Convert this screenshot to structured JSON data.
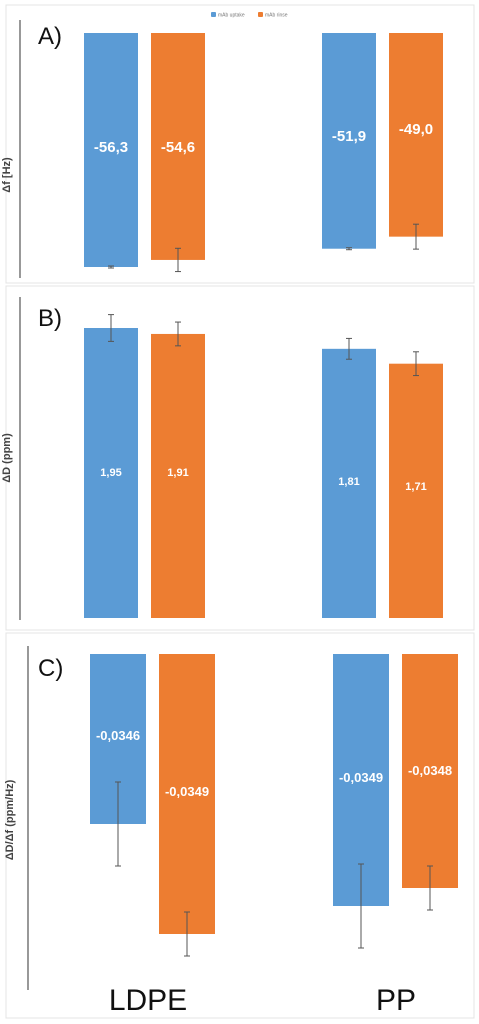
{
  "colors": {
    "series_1": "#5B9BD5",
    "series_2": "#ED7D31"
  },
  "legend": [
    "mAb uptake",
    "mAb rinse"
  ],
  "chart_data": [
    {
      "type": "bar",
      "panel_label": "A)",
      "ylabel": "Δf [Hz)",
      "categories": [
        "LDPE",
        "PP"
      ],
      "series": [
        {
          "name": "mAb uptake",
          "values": [
            -56.3,
            -51.9
          ],
          "labels": [
            "-56,3",
            "-51,9"
          ],
          "errors": [
            0.1,
            0.1
          ]
        },
        {
          "name": "mAb rinse",
          "values": [
            -54.6,
            -49.0
          ],
          "labels": [
            "-54,6",
            "-49,0"
          ],
          "errors": [
            2.8,
            3.0
          ]
        }
      ]
    },
    {
      "type": "bar",
      "panel_label": "B)",
      "ylabel": "ΔD (ppm)",
      "categories": [
        "LDPE",
        "PP"
      ],
      "series": [
        {
          "name": "mAb uptake",
          "values": [
            1.95,
            1.81
          ],
          "labels": [
            "1,95",
            "1,81"
          ],
          "errors": [
            0.09,
            0.07
          ]
        },
        {
          "name": "mAb rinse",
          "values": [
            1.91,
            1.71
          ],
          "labels": [
            "1,91",
            "1,71"
          ],
          "errors": [
            0.08,
            0.08
          ]
        }
      ]
    },
    {
      "type": "bar",
      "panel_label": "C)",
      "ylabel": "ΔD/Δf (ppm/Hz)",
      "categories": [
        "LDPE",
        "PP"
      ],
      "series": [
        {
          "name": "mAb uptake",
          "values": [
            -0.0346,
            -0.0349
          ],
          "labels": [
            "-0,0346",
            "-0,0349"
          ],
          "errors": [
            0.0128,
            0.0136
          ]
        },
        {
          "name": "mAb rinse",
          "values": [
            -0.0349,
            -0.0348
          ],
          "labels": [
            "-0,0349",
            "-0,0348"
          ],
          "errors": [
            0.004,
            0.004
          ]
        }
      ]
    }
  ],
  "x_categories": [
    "LDPE",
    "PP"
  ]
}
